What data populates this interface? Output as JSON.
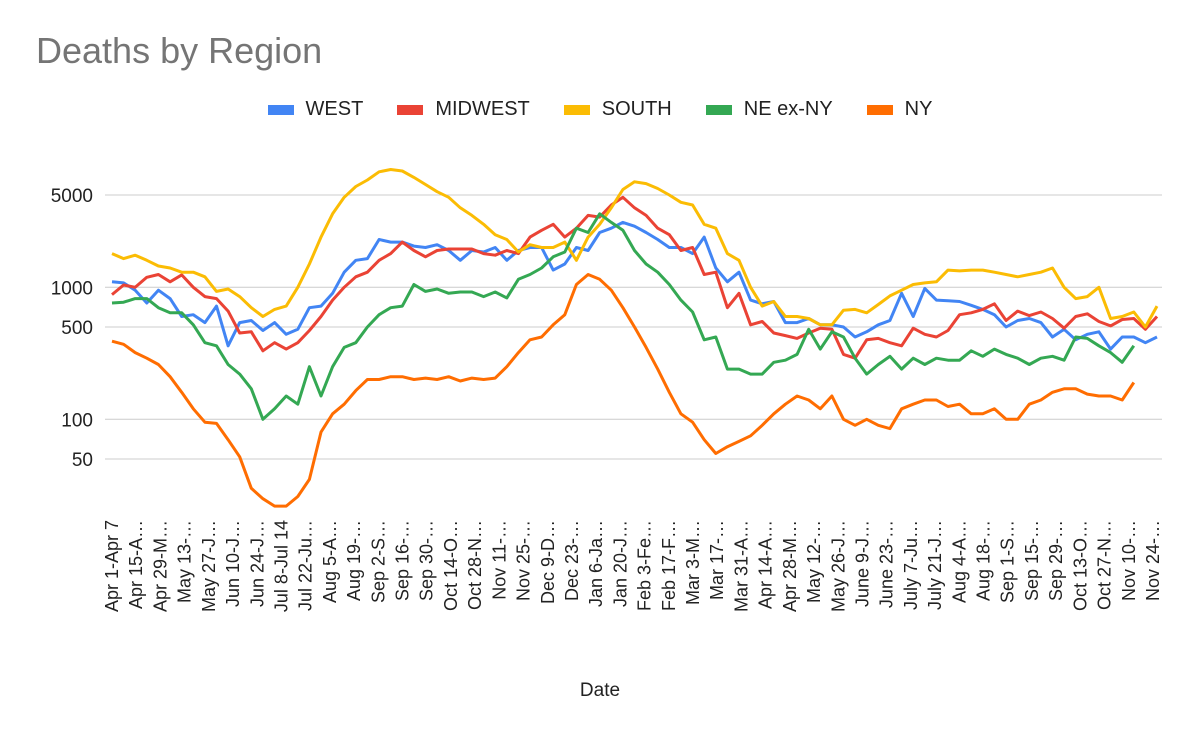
{
  "chart_data": {
    "type": "line",
    "title": "Deaths by Region",
    "xlabel": "Date",
    "ylabel": "",
    "y_scale": "log",
    "y_ticks": [
      50,
      100,
      500,
      1000,
      5000
    ],
    "grid": true,
    "legend_position": "top",
    "x_tick_labels": [
      "Apr 1-Apr 7",
      "Apr 15-A…",
      "Apr 29-M…",
      "May 13-…",
      "May 27-J…",
      "Jun 10-J…",
      "Jun 24-J…",
      "Jul 8-Jul 14",
      "Jul 22-Ju…",
      "Aug 5-A…",
      "Aug 19-…",
      "Sep 2-S…",
      "Sep 16-…",
      "Sep 30-…",
      "Oct 14-O…",
      "Oct 28-N…",
      "Nov 11-…",
      "Nov 25-…",
      "Dec 9-D…",
      "Dec 23-…",
      "Jan 6-Ja…",
      "Jan 20-J…",
      "Feb 3-Fe…",
      "Feb 17-F…",
      "Mar 3-M…",
      "Mar 17-…",
      "Mar 31-A…",
      "Apr 14-A…",
      "Apr 28-M…",
      "May 12-…",
      "May 26-J…",
      "June 9-J…",
      "June 23-…",
      "July 7-Ju…",
      "July 21-J…",
      "Aug 4-A…",
      "Aug 18-…",
      "Sep 1-S…",
      "Sep 15-…",
      "Sep 29-…",
      "Oct 13-O…",
      "Oct 27-N…",
      "Nov 10-…",
      "Nov 24-…"
    ],
    "series": [
      {
        "name": "WEST",
        "color": "#4285f4",
        "values": [
          1100,
          1080,
          950,
          760,
          950,
          820,
          600,
          620,
          540,
          720,
          360,
          540,
          560,
          470,
          540,
          440,
          480,
          700,
          720,
          900,
          1300,
          1600,
          1650,
          2300,
          2200,
          2200,
          2050,
          2000,
          2100,
          1900,
          1600,
          1900,
          1850,
          2000,
          1600,
          1900,
          2000,
          2000,
          1350,
          1500,
          2000,
          1900,
          2600,
          2800,
          3100,
          2900,
          2600,
          2300,
          2000,
          2000,
          1800,
          2400,
          1400,
          1100,
          1300,
          800,
          750,
          780,
          540,
          540,
          580,
          520,
          520,
          500,
          420,
          460,
          520,
          560,
          900,
          600,
          980,
          800,
          790,
          780,
          730,
          680,
          620,
          500,
          560,
          580,
          540,
          420,
          480,
          400,
          440,
          460,
          340,
          420,
          420,
          380,
          420
        ]
      },
      {
        "name": "MIDWEST",
        "color": "#ea4335",
        "values": [
          880,
          1040,
          1000,
          1190,
          1250,
          1100,
          1240,
          1000,
          850,
          820,
          660,
          450,
          460,
          330,
          380,
          340,
          380,
          470,
          600,
          800,
          1000,
          1200,
          1300,
          1600,
          1800,
          2200,
          1900,
          1700,
          1900,
          1950,
          1950,
          1950,
          1800,
          1750,
          1900,
          1800,
          2400,
          2700,
          3000,
          2400,
          2800,
          3500,
          3400,
          4200,
          4800,
          4000,
          3500,
          2800,
          2500,
          1900,
          2000,
          1250,
          1300,
          700,
          900,
          520,
          550,
          450,
          430,
          410,
          450,
          490,
          480,
          310,
          290,
          400,
          410,
          380,
          360,
          490,
          440,
          420,
          470,
          620,
          640,
          680,
          750,
          560,
          660,
          610,
          650,
          580,
          490,
          600,
          630,
          550,
          510,
          570,
          580,
          480,
          600
        ]
      },
      {
        "name": "SOUTH",
        "color": "#fbbc04",
        "values": [
          1800,
          1650,
          1750,
          1600,
          1450,
          1400,
          1300,
          1300,
          1200,
          930,
          970,
          850,
          700,
          600,
          680,
          720,
          1000,
          1500,
          2400,
          3600,
          4800,
          5800,
          6500,
          7500,
          7800,
          7600,
          6800,
          6000,
          5300,
          4800,
          4000,
          3500,
          3000,
          2500,
          2300,
          1850,
          2100,
          2000,
          2000,
          2200,
          1600,
          2400,
          3000,
          4000,
          5500,
          6300,
          6100,
          5600,
          5000,
          4400,
          4200,
          3000,
          2800,
          1800,
          1600,
          1000,
          720,
          780,
          600,
          600,
          580,
          520,
          520,
          670,
          680,
          640,
          740,
          860,
          950,
          1050,
          1080,
          1100,
          1350,
          1330,
          1350,
          1350,
          1300,
          1250,
          1200,
          1250,
          1300,
          1400,
          1000,
          820,
          850,
          1000,
          580,
          600,
          650,
          500,
          720
        ]
      },
      {
        "name": "NE ex-NY",
        "color": "#34a853",
        "values": [
          760,
          770,
          820,
          820,
          700,
          640,
          640,
          520,
          380,
          360,
          260,
          220,
          170,
          100,
          120,
          150,
          130,
          250,
          150,
          250,
          350,
          380,
          500,
          620,
          700,
          720,
          1050,
          930,
          970,
          900,
          920,
          920,
          850,
          920,
          830,
          1150,
          1250,
          1400,
          1700,
          1850,
          2800,
          2600,
          3600,
          3100,
          2700,
          1900,
          1500,
          1300,
          1050,
          800,
          650,
          400,
          420,
          240,
          240,
          220,
          220,
          270,
          280,
          310,
          480,
          340,
          460,
          420,
          290,
          220,
          260,
          300,
          240,
          290,
          260,
          290,
          280,
          280,
          330,
          300,
          340,
          310,
          290,
          260,
          290,
          300,
          280,
          420,
          410,
          360,
          320,
          270,
          360
        ]
      },
      {
        "name": "NY",
        "color": "#ff6d01",
        "values": [
          390,
          370,
          320,
          290,
          260,
          210,
          160,
          120,
          95,
          93,
          70,
          52,
          30,
          25,
          22,
          22,
          26,
          35,
          80,
          110,
          130,
          165,
          200,
          200,
          210,
          210,
          200,
          205,
          200,
          210,
          195,
          205,
          200,
          205,
          250,
          320,
          400,
          420,
          520,
          620,
          1050,
          1250,
          1150,
          950,
          700,
          500,
          350,
          240,
          160,
          110,
          95,
          70,
          55,
          62,
          68,
          75,
          90,
          110,
          130,
          150,
          140,
          120,
          150,
          100,
          90,
          100,
          90,
          85,
          120,
          130,
          140,
          140,
          125,
          130,
          110,
          110,
          120,
          100,
          100,
          130,
          140,
          160,
          170,
          170,
          155,
          150,
          150,
          140,
          190
        ]
      }
    ]
  }
}
